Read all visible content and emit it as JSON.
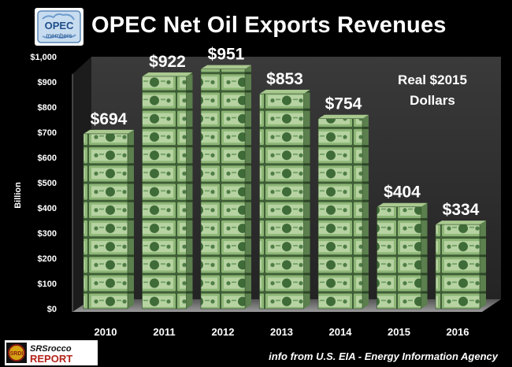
{
  "logo_opec": {
    "line1": "OPEC",
    "line2": "members"
  },
  "logo_srs": {
    "line1": "SRSrocco",
    "line2": "REPORT",
    "badge": "SRDI"
  },
  "source_note": "info from U.S. EIA - Energy Information Agency",
  "colors": {
    "background": "#000000",
    "plot_panel": "#2e2e2e",
    "bill_green": "#7aa862",
    "text": "#ffffff"
  },
  "chart_data": {
    "type": "bar",
    "title": "OPEC Net Oil Exports Revenues",
    "annotation": [
      "Real $2015",
      "Dollars"
    ],
    "ylabel": "Billion",
    "xlabel": "",
    "categories": [
      "2010",
      "2011",
      "2012",
      "2013",
      "2014",
      "2015",
      "2016"
    ],
    "values": [
      694,
      922,
      951,
      853,
      754,
      404,
      334
    ],
    "data_labels": [
      "$694",
      "$922",
      "$951",
      "$853",
      "$754",
      "$404",
      "$334"
    ],
    "yticks": [
      "$0",
      "$100",
      "$200",
      "$300",
      "$400",
      "$500",
      "$600",
      "$700",
      "$800",
      "$900",
      "$1,000"
    ],
    "ylim": [
      0,
      1000
    ],
    "grid": false,
    "legend": "none",
    "bar_style": "stacked dollar-bill bundles"
  }
}
